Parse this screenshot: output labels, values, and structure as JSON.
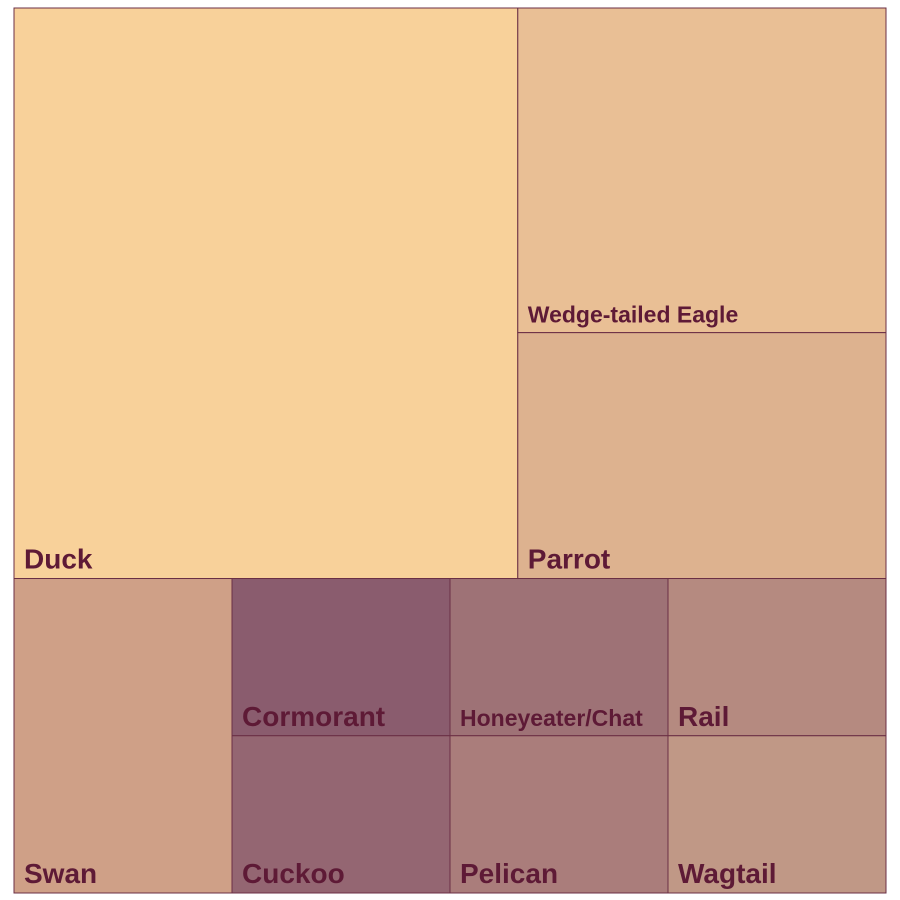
{
  "chart_data": {
    "type": "treemap",
    "title": "",
    "colors": {
      "label": "#5e1a36",
      "border": "#6b2f45"
    },
    "tiles": [
      {
        "name": "Duck",
        "value": 32.7,
        "color": "#f8d19a"
      },
      {
        "name": "Wedge-tailed Eagle",
        "value": 13.6,
        "color": "#e9bf95"
      },
      {
        "name": "Parrot",
        "value": 10.3,
        "color": "#ddb28f"
      },
      {
        "name": "Swan",
        "value": 7.8,
        "color": "#cfa087"
      },
      {
        "name": "Cormorant",
        "value": 3.9,
        "color": "#8a5c6e"
      },
      {
        "name": "Cuckoo",
        "value": 3.9,
        "color": "#946672"
      },
      {
        "name": "Honeyeater/Chat",
        "value": 3.9,
        "color": "#9e7276"
      },
      {
        "name": "Pelican",
        "value": 3.9,
        "color": "#aa7d7b"
      },
      {
        "name": "Rail",
        "value": 3.9,
        "color": "#b58a80"
      },
      {
        "name": "Wagtail",
        "value": 3.9,
        "color": "#c09886"
      }
    ]
  }
}
